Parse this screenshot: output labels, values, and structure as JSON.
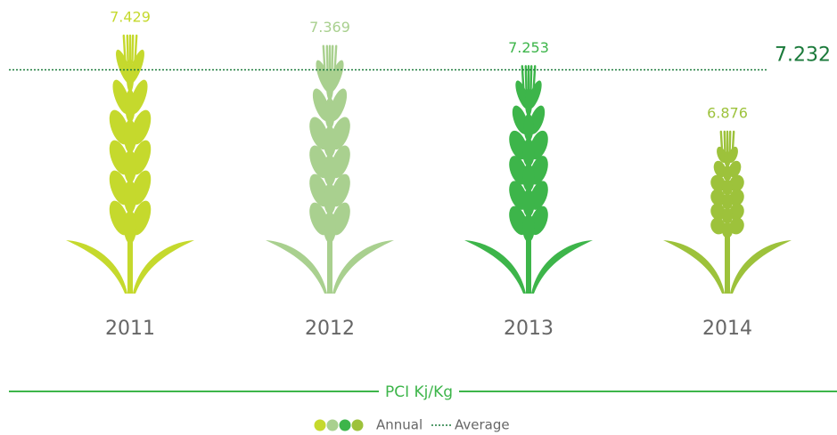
{
  "chart_data": {
    "type": "pictogram",
    "title": "PCI Kj/Kg",
    "categories": [
      "2011",
      "2012",
      "2013",
      "2014"
    ],
    "values": [
      7.429,
      7.369,
      7.253,
      6.876
    ],
    "colors": [
      "#c5d92d",
      "#a9d08f",
      "#3db54a",
      "#9dc23b"
    ],
    "average": 7.232,
    "average_color": "#1b7a3b",
    "legend": [
      "Annual",
      "Average"
    ]
  }
}
